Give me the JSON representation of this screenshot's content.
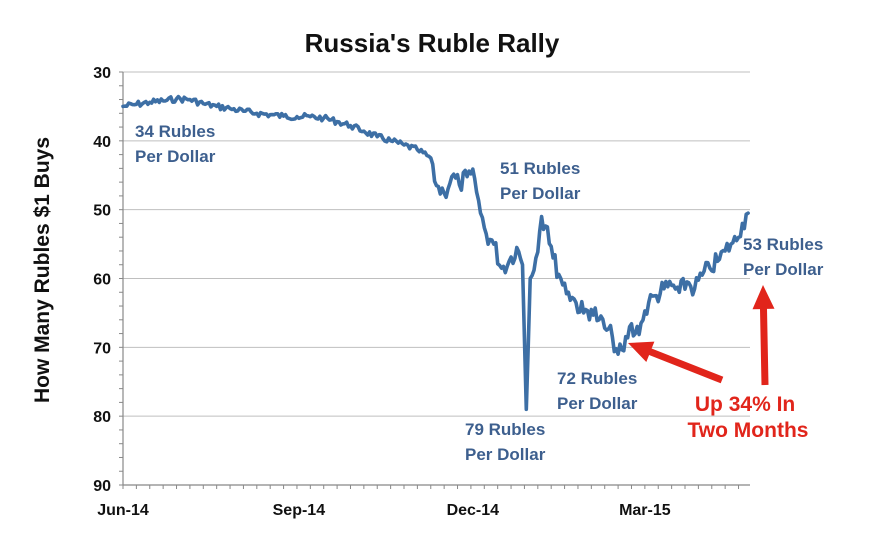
{
  "colors": {
    "line": "#3d6fa5",
    "annotation": "#3d5f8e",
    "callout": "#e1251b",
    "grid": "#bfbfbf",
    "axis": "#888888"
  },
  "chart_data": {
    "type": "line",
    "title": "Russia's Ruble Rally",
    "xlabel": "",
    "ylabel": "How Many Rubles $1 Buys",
    "ylim": [
      30,
      90
    ],
    "y_inverted": true,
    "yticks": [
      30,
      40,
      50,
      60,
      70,
      80,
      90
    ],
    "xticks": [
      "Jun-14",
      "Sep-14",
      "Dec-14",
      "Mar-15"
    ],
    "xlim": [
      "2014-06-01",
      "2015-04-25"
    ],
    "grid": "horizontal",
    "series": [
      {
        "name": "",
        "points": [
          [
            "2014-06-01",
            35.0
          ],
          [
            "2014-06-08",
            34.7
          ],
          [
            "2014-06-15",
            34.4
          ],
          [
            "2014-06-22",
            34.2
          ],
          [
            "2014-06-29",
            33.9
          ],
          [
            "2014-07-06",
            34.0
          ],
          [
            "2014-07-13",
            34.6
          ],
          [
            "2014-07-20",
            35.0
          ],
          [
            "2014-07-27",
            35.3
          ],
          [
            "2014-08-03",
            35.7
          ],
          [
            "2014-08-10",
            36.0
          ],
          [
            "2014-08-17",
            36.2
          ],
          [
            "2014-08-24",
            36.4
          ],
          [
            "2014-08-31",
            36.5
          ],
          [
            "2014-09-07",
            36.5
          ],
          [
            "2014-09-14",
            36.7
          ],
          [
            "2014-09-21",
            37.2
          ],
          [
            "2014-09-28",
            37.8
          ],
          [
            "2014-10-05",
            38.6
          ],
          [
            "2014-10-12",
            39.4
          ],
          [
            "2014-10-19",
            40.0
          ],
          [
            "2014-10-26",
            40.6
          ],
          [
            "2014-11-02",
            41.3
          ],
          [
            "2014-11-09",
            42.5
          ],
          [
            "2014-11-12",
            46.5
          ],
          [
            "2014-11-16",
            47.6
          ],
          [
            "2014-11-20",
            45.2
          ],
          [
            "2014-11-24",
            46.4
          ],
          [
            "2014-11-28",
            45.2
          ],
          [
            "2014-12-02",
            45.5
          ],
          [
            "2014-12-05",
            50.5
          ],
          [
            "2014-12-08",
            53.5
          ],
          [
            "2014-12-12",
            55.0
          ],
          [
            "2014-12-16",
            58.5
          ],
          [
            "2014-12-20",
            57.5
          ],
          [
            "2014-12-24",
            55.5
          ],
          [
            "2014-12-27",
            58.0
          ],
          [
            "2014-12-29",
            79.0
          ],
          [
            "2014-12-31",
            60.0
          ],
          [
            "2015-01-03",
            57.0
          ],
          [
            "2015-01-06",
            51.0
          ],
          [
            "2015-01-09",
            52.5
          ],
          [
            "2015-01-12",
            57.0
          ],
          [
            "2015-01-16",
            60.0
          ],
          [
            "2015-01-20",
            62.0
          ],
          [
            "2015-01-24",
            63.5
          ],
          [
            "2015-01-28",
            65.0
          ],
          [
            "2015-02-01",
            64.5
          ],
          [
            "2015-02-05",
            66.0
          ],
          [
            "2015-02-09",
            67.5
          ],
          [
            "2015-02-12",
            68.5
          ],
          [
            "2015-02-15",
            71.0
          ],
          [
            "2015-02-18",
            70.5
          ],
          [
            "2015-02-21",
            67.0
          ],
          [
            "2015-02-24",
            68.0
          ],
          [
            "2015-02-27",
            66.5
          ],
          [
            "2015-03-03",
            63.5
          ],
          [
            "2015-03-07",
            62.5
          ],
          [
            "2015-03-11",
            61.5
          ],
          [
            "2015-03-15",
            61.0
          ],
          [
            "2015-03-19",
            62.0
          ],
          [
            "2015-03-23",
            60.5
          ],
          [
            "2015-03-27",
            61.5
          ],
          [
            "2015-03-31",
            59.5
          ],
          [
            "2015-04-04",
            58.5
          ],
          [
            "2015-04-08",
            57.5
          ],
          [
            "2015-04-12",
            56.0
          ],
          [
            "2015-04-15",
            55.0
          ],
          [
            "2015-04-18",
            54.5
          ],
          [
            "2015-04-21",
            52.0
          ],
          [
            "2015-04-24",
            50.5
          ]
        ]
      }
    ],
    "annotations": [
      {
        "lines": [
          "34 Rubles",
          "Per Dollar"
        ]
      },
      {
        "lines": [
          "51 Rubles",
          "Per Dollar"
        ]
      },
      {
        "lines": [
          "79 Rubles",
          "Per Dollar"
        ]
      },
      {
        "lines": [
          "72 Rubles",
          "Per Dollar"
        ]
      },
      {
        "lines": [
          "53 Rubles",
          "Per Dollar"
        ]
      }
    ],
    "callout": {
      "lines": [
        "Up 34% In",
        "Two Months"
      ]
    }
  }
}
